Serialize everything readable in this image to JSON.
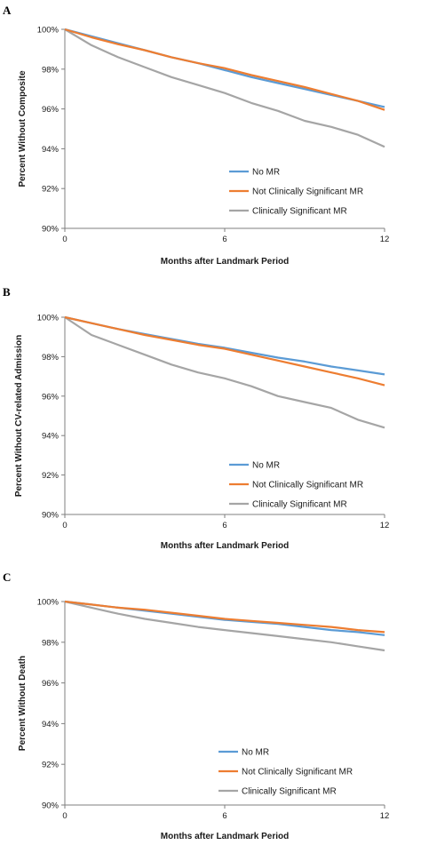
{
  "colors": {
    "no_mr": "#5B9BD5",
    "not_sig": "#ED7D31",
    "sig": "#A5A5A5",
    "axis": "#7f7f7f"
  },
  "chart_data": [
    {
      "type": "line",
      "panel_label": "A",
      "title": "",
      "xlabel": "Months after Landmark Period",
      "ylabel": "Percent Without Composite",
      "xlim": [
        0,
        12
      ],
      "ylim": [
        90,
        100
      ],
      "x_ticks": [
        "0",
        "6",
        "12"
      ],
      "y_ticks": [
        "90%",
        "92%",
        "94%",
        "96%",
        "98%",
        "100%"
      ],
      "legend_position": "lower-right",
      "series": [
        {
          "name": "No MR",
          "x": [
            0,
            1,
            2,
            3,
            4,
            5,
            6,
            7,
            8,
            9,
            10,
            11,
            12
          ],
          "values": [
            100,
            99.65,
            99.3,
            98.95,
            98.6,
            98.3,
            97.95,
            97.6,
            97.3,
            97.0,
            96.7,
            96.4,
            96.1
          ]
        },
        {
          "name": "Not Clinically Significant MR",
          "x": [
            0,
            1,
            2,
            3,
            4,
            5,
            6,
            7,
            8,
            9,
            10,
            11,
            12
          ],
          "values": [
            100,
            99.6,
            99.25,
            98.95,
            98.6,
            98.3,
            98.05,
            97.7,
            97.4,
            97.1,
            96.75,
            96.4,
            95.95
          ]
        },
        {
          "name": "Clinically Significant MR",
          "x": [
            0,
            1,
            2,
            3,
            4,
            5,
            6,
            7,
            8,
            9,
            10,
            11,
            12
          ],
          "values": [
            100,
            99.2,
            98.6,
            98.1,
            97.6,
            97.2,
            96.8,
            96.3,
            95.9,
            95.4,
            95.1,
            94.7,
            94.1
          ]
        }
      ]
    },
    {
      "type": "line",
      "panel_label": "B",
      "title": "",
      "xlabel": "Months after Landmark Period",
      "ylabel": "Percent Without CV-related Admission",
      "xlim": [
        0,
        12
      ],
      "ylim": [
        90,
        100
      ],
      "x_ticks": [
        "0",
        "6",
        "12"
      ],
      "y_ticks": [
        "90%",
        "92%",
        "94%",
        "96%",
        "98%",
        "100%"
      ],
      "legend_position": "lower-right",
      "series": [
        {
          "name": "No MR",
          "x": [
            0,
            1,
            2,
            3,
            4,
            5,
            6,
            7,
            8,
            9,
            10,
            11,
            12
          ],
          "values": [
            100,
            99.7,
            99.4,
            99.15,
            98.9,
            98.65,
            98.45,
            98.2,
            97.95,
            97.75,
            97.5,
            97.3,
            97.1
          ]
        },
        {
          "name": "Not Clinically Significant MR",
          "x": [
            0,
            1,
            2,
            3,
            4,
            5,
            6,
            7,
            8,
            9,
            10,
            11,
            12
          ],
          "values": [
            100,
            99.7,
            99.4,
            99.1,
            98.85,
            98.6,
            98.4,
            98.1,
            97.8,
            97.5,
            97.2,
            96.9,
            96.55
          ]
        },
        {
          "name": "Clinically Significant MR",
          "x": [
            0,
            1,
            2,
            3,
            4,
            5,
            6,
            7,
            8,
            9,
            10,
            11,
            12
          ],
          "values": [
            100,
            99.1,
            98.6,
            98.1,
            97.6,
            97.2,
            96.9,
            96.5,
            96.0,
            95.7,
            95.4,
            94.8,
            94.4
          ]
        }
      ]
    },
    {
      "type": "line",
      "panel_label": "C",
      "title": "",
      "xlabel": "Months after Landmark Period",
      "ylabel": "Percent Without Death",
      "xlim": [
        0,
        12
      ],
      "ylim": [
        90,
        100
      ],
      "x_ticks": [
        "0",
        "6",
        "12"
      ],
      "y_ticks": [
        "90%",
        "92%",
        "94%",
        "96%",
        "98%",
        "100%"
      ],
      "legend_position": "lower-right",
      "series": [
        {
          "name": "No MR",
          "x": [
            0,
            1,
            2,
            3,
            4,
            5,
            6,
            7,
            8,
            9,
            10,
            11,
            12
          ],
          "values": [
            100,
            99.85,
            99.7,
            99.55,
            99.4,
            99.25,
            99.1,
            99.0,
            98.9,
            98.75,
            98.6,
            98.5,
            98.35
          ]
        },
        {
          "name": "Not Clinically Significant MR",
          "x": [
            0,
            1,
            2,
            3,
            4,
            5,
            6,
            7,
            8,
            9,
            10,
            11,
            12
          ],
          "values": [
            100,
            99.85,
            99.7,
            99.6,
            99.45,
            99.3,
            99.15,
            99.05,
            98.95,
            98.85,
            98.75,
            98.6,
            98.5
          ]
        },
        {
          "name": "Clinically Significant MR",
          "x": [
            0,
            1,
            2,
            3,
            4,
            5,
            6,
            7,
            8,
            9,
            10,
            11,
            12
          ],
          "values": [
            100,
            99.7,
            99.4,
            99.15,
            98.95,
            98.75,
            98.6,
            98.45,
            98.3,
            98.15,
            98.0,
            97.8,
            97.6
          ]
        }
      ]
    }
  ]
}
